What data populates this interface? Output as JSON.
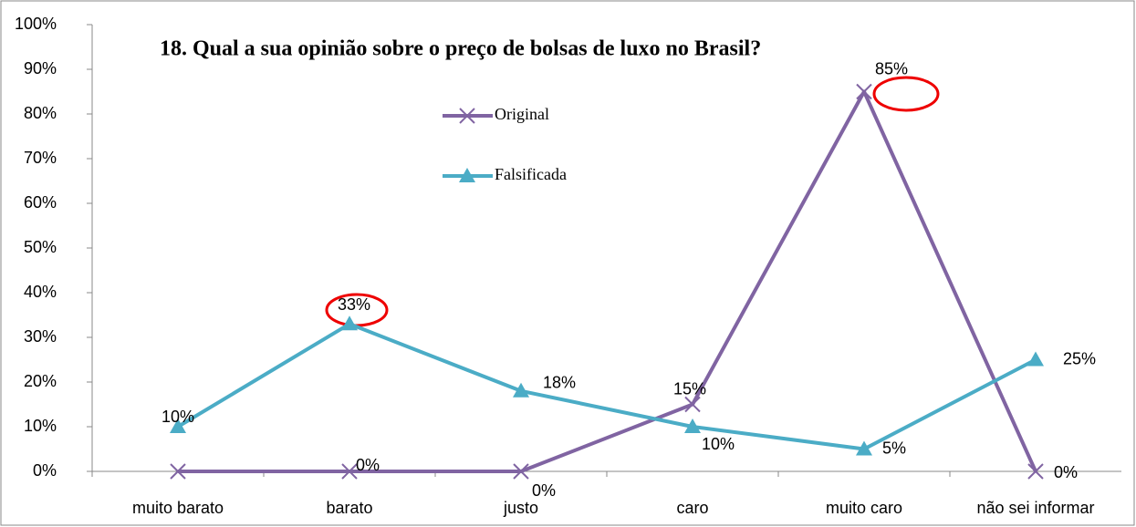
{
  "chart_data": {
    "type": "line",
    "title": "18. Qual a sua opinião sobre o preço de bolsas de luxo no Brasil?",
    "categories": [
      "muito barato",
      "barato",
      "justo",
      "caro",
      "muito caro",
      "não sei informar"
    ],
    "series": [
      {
        "name": "Original",
        "color": "#8064a2",
        "marker": "x",
        "values": [
          0,
          0,
          0,
          15,
          85,
          0
        ],
        "value_labels": [
          null,
          "0%",
          "0%",
          "15%",
          "85%",
          "0%"
        ]
      },
      {
        "name": "Falsificada",
        "color": "#4bacc6",
        "marker": "triangle",
        "values": [
          10,
          33,
          18,
          10,
          5,
          25
        ],
        "value_labels": [
          "10%",
          "33%",
          "18%",
          "10%",
          "5%",
          "25%"
        ]
      }
    ],
    "ylim": [
      0,
      100
    ],
    "yticks": [
      {
        "value": 0,
        "label": "0%"
      },
      {
        "value": 10,
        "label": "10%"
      },
      {
        "value": 20,
        "label": "20%"
      },
      {
        "value": 30,
        "label": "30%"
      },
      {
        "value": 40,
        "label": "40%"
      },
      {
        "value": 50,
        "label": "50%"
      },
      {
        "value": 60,
        "label": "60%"
      },
      {
        "value": 70,
        "label": "70%"
      },
      {
        "value": 80,
        "label": "80%"
      },
      {
        "value": 90,
        "label": "90%"
      },
      {
        "value": 100,
        "label": "100%"
      }
    ],
    "grid": false
  }
}
